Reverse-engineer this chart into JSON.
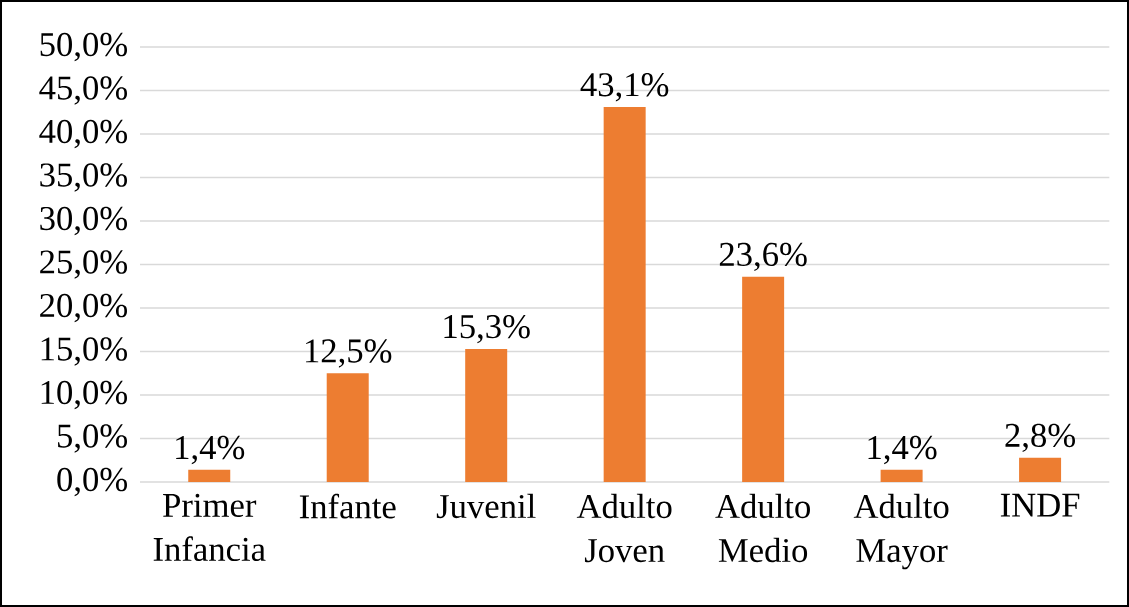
{
  "chart_data": {
    "type": "bar",
    "categories": [
      "Primer Infancia",
      "Infante",
      "Juvenil",
      "Adulto Joven",
      "Adulto Medio",
      "Adulto Mayor",
      "INDF"
    ],
    "values": [
      1.4,
      12.5,
      15.3,
      43.1,
      23.6,
      1.4,
      2.8
    ],
    "value_labels": [
      "1,4%",
      "12,5%",
      "15,3%",
      "43,1%",
      "23,6%",
      "1,4%",
      "2,8%"
    ],
    "color": "#ed7d31",
    "ylim": [
      0,
      50
    ],
    "yticks": [
      {
        "value": 0,
        "label": "0,0%"
      },
      {
        "value": 5,
        "label": "5,0%"
      },
      {
        "value": 10,
        "label": "10,0%"
      },
      {
        "value": 15,
        "label": "15,0%"
      },
      {
        "value": 20,
        "label": "20,0%"
      },
      {
        "value": 25,
        "label": "25,0%"
      },
      {
        "value": 30,
        "label": "30,0%"
      },
      {
        "value": 35,
        "label": "35,0%"
      },
      {
        "value": 40,
        "label": "40,0%"
      },
      {
        "value": 45,
        "label": "45,0%"
      },
      {
        "value": 50,
        "label": "50,0%"
      }
    ],
    "grid": "y"
  }
}
